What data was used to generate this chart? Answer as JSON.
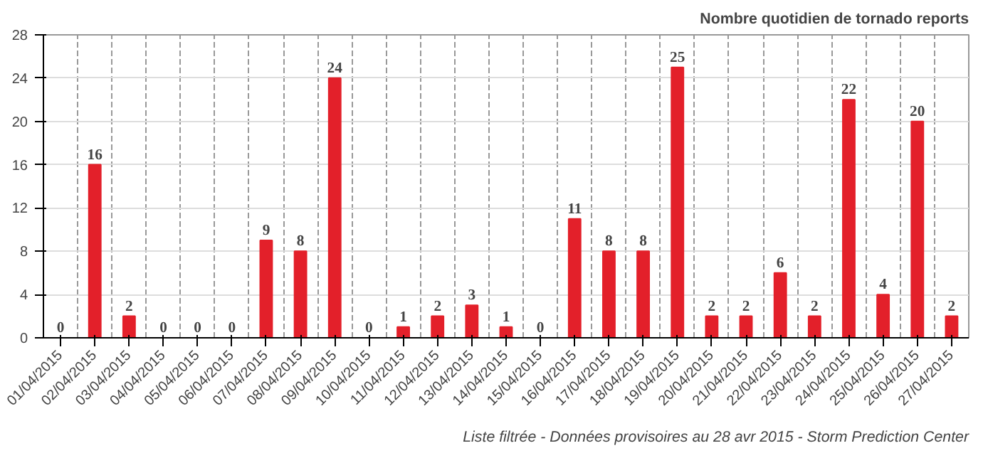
{
  "chart_data": {
    "type": "bar",
    "title": "Nombre quotidien de tornado reports",
    "categories": [
      "01/04/2015",
      "02/04/2015",
      "03/04/2015",
      "04/04/2015",
      "05/04/2015",
      "06/04/2015",
      "07/04/2015",
      "08/04/2015",
      "09/04/2015",
      "10/04/2015",
      "11/04/2015",
      "12/04/2015",
      "13/04/2015",
      "14/04/2015",
      "15/04/2015",
      "16/04/2015",
      "17/04/2015",
      "18/04/2015",
      "19/04/2015",
      "20/04/2015",
      "21/04/2015",
      "22/04/2015",
      "23/04/2015",
      "24/04/2015",
      "25/04/2015",
      "26/04/2015",
      "27/04/2015"
    ],
    "values": [
      0,
      16,
      2,
      0,
      0,
      0,
      9,
      8,
      24,
      0,
      1,
      2,
      3,
      1,
      0,
      11,
      8,
      8,
      25,
      2,
      2,
      6,
      2,
      22,
      4,
      20,
      2
    ],
    "color": "#e3202a",
    "data_labels": true,
    "ylim": [
      0,
      28
    ],
    "yticks": [
      0,
      4,
      8,
      12,
      16,
      20,
      24,
      28
    ],
    "grid": true,
    "annotations": [
      "Liste filtrée - Données provisoires au 28 avr 2015 - Storm Prediction Center"
    ]
  }
}
